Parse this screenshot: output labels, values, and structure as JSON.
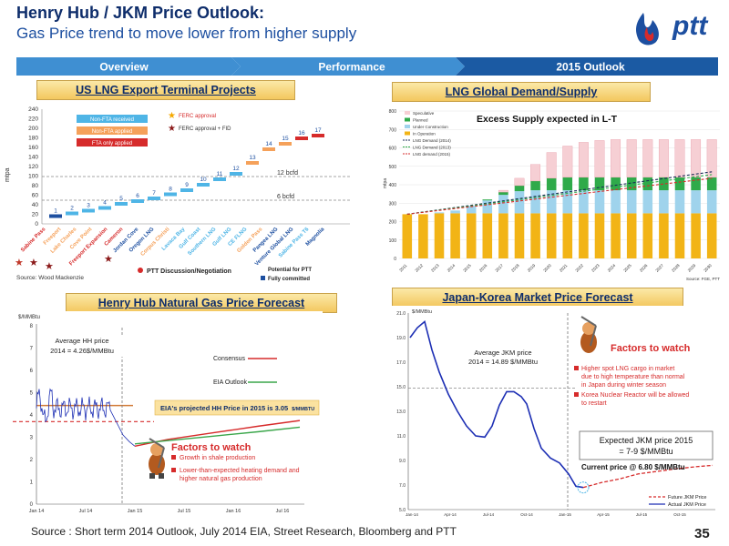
{
  "header": {
    "title": "Henry Hub / JKM Price Outlook:",
    "subtitle": "Gas Price trend to move lower from higher supply",
    "logo_text": "ptt"
  },
  "nav": {
    "items": [
      {
        "label": "Overview"
      },
      {
        "label": "Performance"
      },
      {
        "label": "2015 Outlook"
      }
    ],
    "active_index": 2
  },
  "colors": {
    "nav_inactive": "#3f8fd2",
    "nav_active": "#1b5aa3",
    "section_fill": "#f3c75e",
    "red": "#d62b2b",
    "blue": "#1d2fb4"
  },
  "panels": {
    "us_lng": {
      "title": "US LNG Export Terminal Projects",
      "ylabel": "mtpa",
      "yticks": [
        "0",
        "20",
        "40",
        "60",
        "80",
        "100",
        "120",
        "140",
        "160",
        "180",
        "200",
        "220",
        "240"
      ],
      "legend": [
        "Non-FTA received",
        "Non-FTA applied",
        "FTA only applied"
      ],
      "ferc": [
        "FERC approval",
        "FERC approval + FID"
      ],
      "bcfd": [
        "12 bcfd",
        "6 bcfd"
      ],
      "step_labels": [
        "1",
        "2",
        "3",
        "4",
        "5",
        "6",
        "7",
        "8",
        "9",
        "10",
        "11",
        "12",
        "13",
        "14",
        "15",
        "16",
        "17"
      ],
      "projects": [
        "Sabine Pass",
        "Freeport",
        "Lake Charles",
        "Cove Point",
        "Freeport Expansion",
        "Cameron",
        "Jordan Cove",
        "Oregon LNG",
        "Corpus Christi",
        "Lavaca Bay",
        "Gulf Coast",
        "Southern LNG",
        "Gulf LNG",
        "CE FLNG",
        "Golden Pass",
        "Pangea LNG",
        "Venture Global LNG",
        "Sabine Pass T6",
        "Magnolia"
      ],
      "ptt_note": "PTT Discussion/Negotiation",
      "potential_note": "Potential for PTT",
      "committed_note": "Fully committed",
      "source": "Source: Wood Mackenzie"
    },
    "lng_global": {
      "title": "LNG Global Demand/Supply",
      "annotation": "Excess Supply expected in L-T",
      "ylabel": "mtpa",
      "legend": [
        "Speculative",
        "Planned",
        "Under Construction",
        "In Operation",
        "LNG Demand (2014)",
        "LNG Demand (2013)",
        "LNG demand (2015)"
      ],
      "source": "Source: FGE, PTT",
      "chart_data": {
        "type": "bar",
        "categories": [
          "2011",
          "2012",
          "2013",
          "2014",
          "2015",
          "2016",
          "2017",
          "2018",
          "2019",
          "2020",
          "2021",
          "2022",
          "2023",
          "2024",
          "2025",
          "2026",
          "2027",
          "2028",
          "2029",
          "2030"
        ],
        "ylim": [
          0,
          800
        ],
        "series": [
          {
            "name": "In Operation",
            "values": [
              240,
              240,
              245,
              245,
              245,
              245,
              245,
              245,
              245,
              245,
              245,
              245,
              245,
              245,
              245,
              245,
              245,
              245,
              245,
              245
            ]
          },
          {
            "name": "Under Construction",
            "values": [
              0,
              0,
              5,
              15,
              40,
              70,
              100,
              120,
              125,
              125,
              125,
              125,
              125,
              125,
              125,
              125,
              125,
              125,
              125,
              125
            ]
          },
          {
            "name": "Planned",
            "values": [
              0,
              0,
              0,
              0,
              0,
              5,
              15,
              30,
              50,
              65,
              70,
              70,
              70,
              70,
              70,
              70,
              70,
              70,
              70,
              70
            ]
          },
          {
            "name": "Speculative",
            "values": [
              0,
              0,
              0,
              0,
              0,
              0,
              10,
              40,
              90,
              140,
              170,
              190,
              200,
              205,
              205,
              205,
              205,
              205,
              205,
              205
            ]
          }
        ]
      }
    },
    "henry_hub": {
      "title": "Henry Hub Natural Gas Price Forecast",
      "unit": "$/MMBtu",
      "yticks": [
        "0",
        "1",
        "2",
        "3",
        "4",
        "5",
        "6",
        "7",
        "8"
      ],
      "xticks": [
        "Jan 14",
        "Jul 14",
        "Jan 15",
        "Jul 15",
        "Jan 16",
        "Jul 16"
      ],
      "average_note": "Average HH price 2014 = 4.26$/MMBtu",
      "legend": [
        "Consensus",
        "EIA Outlook"
      ],
      "eia_note": "EIA's projected HH Price in 2015 is 3.05",
      "eia_unit": "$/MMBTU",
      "factors_title": "Factors to watch",
      "factors": [
        "Growth in shale production",
        "Lower-than-expected heating demand and higher natural gas production"
      ],
      "chart_data": {
        "type": "line",
        "ylim": [
          0,
          8
        ],
        "average_2014": 4.26,
        "eia_2015": 3.05
      }
    },
    "jkm": {
      "title": "Japan-Korea Market Price Forecast",
      "unit": "$/MMBtu",
      "yticks": [
        "5.0",
        "7.0",
        "9.0",
        "11.0",
        "13.0",
        "15.0",
        "17.0",
        "19.0",
        "21.0"
      ],
      "xticks": [
        "Jan-14",
        "Apr-14",
        "Jul-14",
        "Oct-14",
        "Jan-15",
        "Apr-15",
        "Jul-15",
        "Oct-15"
      ],
      "average_note": "Average JKM price 2014 = 14.89 $/MMBtu",
      "factors_title": "Factors to watch",
      "factors": [
        "Higher spot LNG cargo in market due to high temperature than normal in Japan during winter season",
        "Korea Nuclear Reactor will be allowed to restart"
      ],
      "expected_note": "Expected JKM price 2015 = 7-9 $/MMBtu",
      "current_note": "Current price @ 6.80 $/MMBtu",
      "legend": [
        "Future JKM Price",
        "Actual JKM Price"
      ],
      "chart_data": {
        "type": "line",
        "ylim": [
          5,
          21
        ],
        "average_2014": 14.89,
        "current": 6.8,
        "expected_2015": [
          7,
          9
        ]
      }
    }
  },
  "footer": {
    "source": "Source : Short term 2014 Outlook, July 2014 EIA, Street Research, Bloomberg and PTT",
    "page": "35"
  }
}
